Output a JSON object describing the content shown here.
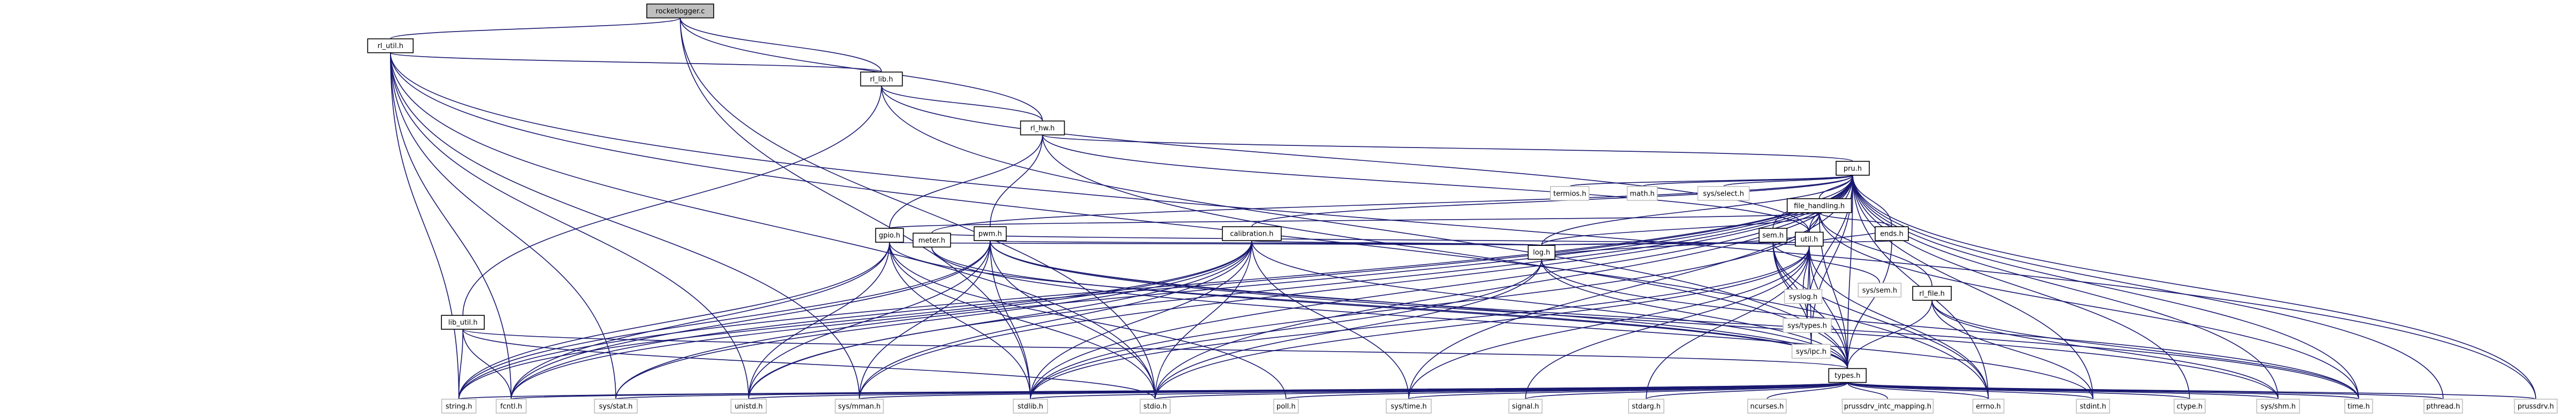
{
  "nodes": [
    {
      "id": "root",
      "label": "rocketlogger.c"
    },
    {
      "id": "rl_util",
      "label": "rl_util.h"
    },
    {
      "id": "rl_lib",
      "label": "rl_lib.h"
    },
    {
      "id": "rl_hw",
      "label": "rl_hw.h"
    },
    {
      "id": "pru",
      "label": "pru.h"
    },
    {
      "id": "file_handling",
      "label": "file_handling.h"
    },
    {
      "id": "ends",
      "label": "ends.h"
    },
    {
      "id": "meter",
      "label": "meter.h"
    },
    {
      "id": "util",
      "label": "util.h"
    },
    {
      "id": "sem",
      "label": "sem.h"
    },
    {
      "id": "calibration",
      "label": "calibration.h"
    },
    {
      "id": "gpio",
      "label": "gpio.h"
    },
    {
      "id": "pwm",
      "label": "pwm.h"
    },
    {
      "id": "log",
      "label": "log.h"
    },
    {
      "id": "lib_util",
      "label": "lib_util.h"
    },
    {
      "id": "rl_file",
      "label": "rl_file.h"
    },
    {
      "id": "types",
      "label": "types.h"
    },
    {
      "id": "termios",
      "label": "termios.h"
    },
    {
      "id": "math",
      "label": "math.h"
    },
    {
      "id": "sys_select",
      "label": "sys/select.h"
    },
    {
      "id": "syslog",
      "label": "syslog.h"
    },
    {
      "id": "sys_sem",
      "label": "sys/sem.h"
    },
    {
      "id": "sys_types",
      "label": "sys/types.h"
    },
    {
      "id": "sys_ipc",
      "label": "sys/ipc.h"
    },
    {
      "id": "string",
      "label": "string.h"
    },
    {
      "id": "fcntl",
      "label": "fcntl.h"
    },
    {
      "id": "sys_stat",
      "label": "sys/stat.h"
    },
    {
      "id": "unistd",
      "label": "unistd.h"
    },
    {
      "id": "sys_mman",
      "label": "sys/mman.h"
    },
    {
      "id": "stdlib",
      "label": "stdlib.h"
    },
    {
      "id": "stdio",
      "label": "stdio.h"
    },
    {
      "id": "poll",
      "label": "poll.h"
    },
    {
      "id": "sys_time",
      "label": "sys/time.h"
    },
    {
      "id": "signal",
      "label": "signal.h"
    },
    {
      "id": "stdarg",
      "label": "stdarg.h"
    },
    {
      "id": "ncurses",
      "label": "ncurses.h"
    },
    {
      "id": "prussdrv_intc",
      "label": "prussdrv_intc_mapping.h"
    },
    {
      "id": "errno",
      "label": "errno.h"
    },
    {
      "id": "stdint",
      "label": "stdint.h"
    },
    {
      "id": "ctype",
      "label": "ctype.h"
    },
    {
      "id": "sys_shm",
      "label": "sys/shm.h"
    },
    {
      "id": "time",
      "label": "time.h"
    },
    {
      "id": "pthread",
      "label": "pthread.h"
    },
    {
      "id": "prussdrv",
      "label": "prussdrv.h"
    }
  ]
}
